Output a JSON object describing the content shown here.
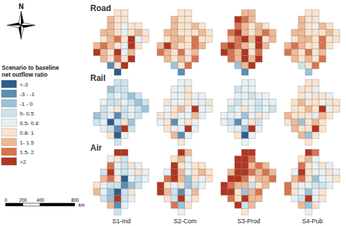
{
  "chart_data": {
    "type": "choropleth",
    "rows": [
      "Road",
      "Rail",
      "Air"
    ],
    "columns": [
      "S1-Ind",
      "S2-Com",
      "S3-Prod",
      "S4-Pub"
    ],
    "legend": {
      "title": [
        "Scenario to baseline",
        "net outflow ratio"
      ],
      "classes": [
        "<-3",
        "-3 - -1",
        "-1 - 0",
        "0- 0.5",
        "0.5- 0.8",
        "0.8- 1",
        "1- 1.5",
        "1.5- 2",
        ">2"
      ],
      "colors": [
        "#2b5f8e",
        "#5b8db5",
        "#9cc3d9",
        "#cde3ee",
        "#e8f0f3",
        "#fbe3cd",
        "#f0b894",
        "#d9734f",
        "#b2351f"
      ]
    },
    "panels": [
      {
        "row": "Road",
        "column": "S1-Ind",
        "classes": [
          5,
          5,
          6,
          5,
          5,
          6,
          5,
          4,
          5,
          5,
          6,
          6,
          5,
          4,
          5,
          6,
          5,
          5,
          6,
          7,
          5,
          8,
          4,
          5,
          6,
          7,
          6,
          5,
          4,
          8,
          5,
          8,
          6,
          5,
          8,
          4,
          6,
          6,
          5,
          7,
          5,
          8,
          1,
          5,
          8,
          0
        ]
      },
      {
        "row": "Road",
        "column": "S2-Com",
        "classes": [
          5,
          5,
          6,
          5,
          5,
          6,
          5,
          5,
          6,
          5,
          6,
          6,
          5,
          5,
          5,
          6,
          5,
          5,
          6,
          6,
          5,
          7,
          5,
          5,
          6,
          8,
          6,
          5,
          5,
          7,
          6,
          7,
          6,
          5,
          7,
          5,
          6,
          6,
          5,
          6,
          5,
          7,
          2,
          5,
          7,
          1
        ]
      },
      {
        "row": "Road",
        "column": "S3-Prod",
        "classes": [
          6,
          6,
          8,
          7,
          6,
          7,
          6,
          5,
          6,
          5,
          7,
          8,
          6,
          5,
          6,
          7,
          6,
          6,
          7,
          8,
          6,
          8,
          5,
          6,
          7,
          8,
          7,
          6,
          5,
          8,
          6,
          8,
          7,
          6,
          8,
          5,
          7,
          7,
          6,
          8,
          6,
          8,
          2,
          6,
          8,
          1
        ]
      },
      {
        "row": "Road",
        "column": "S4-Pub",
        "classes": [
          5,
          5,
          6,
          5,
          5,
          6,
          5,
          4,
          6,
          5,
          6,
          6,
          5,
          5,
          5,
          6,
          5,
          5,
          6,
          6,
          5,
          7,
          5,
          5,
          6,
          7,
          6,
          5,
          5,
          7,
          5,
          7,
          6,
          5,
          7,
          5,
          6,
          6,
          5,
          6,
          5,
          7,
          3,
          5,
          7,
          2
        ]
      },
      {
        "row": "Rail",
        "column": "S1-Ind",
        "classes": [
          3,
          3,
          2,
          3,
          3,
          3,
          4,
          3,
          2,
          3,
          4,
          3,
          3,
          4,
          3,
          2,
          3,
          3,
          4,
          5,
          3,
          4,
          3,
          2,
          2,
          3,
          4,
          1,
          3,
          4,
          3,
          3,
          4,
          0,
          3,
          5,
          2,
          4,
          3,
          1,
          8,
          3,
          5,
          0,
          4,
          3
        ]
      },
      {
        "row": "Rail",
        "column": "S2-Com",
        "classes": [
          4,
          4,
          4,
          4,
          5,
          4,
          4,
          5,
          4,
          4,
          5,
          4,
          4,
          5,
          4,
          4,
          5,
          4,
          5,
          6,
          4,
          8,
          4,
          4,
          5,
          4,
          5,
          4,
          4,
          6,
          4,
          4,
          5,
          1,
          4,
          5,
          4,
          5,
          4,
          4,
          8,
          4,
          6,
          1,
          4,
          5
        ]
      },
      {
        "row": "Rail",
        "column": "S3-Prod",
        "classes": [
          4,
          4,
          3,
          4,
          4,
          4,
          4,
          3,
          4,
          4,
          4,
          3,
          4,
          4,
          3,
          4,
          4,
          3,
          4,
          5,
          4,
          3,
          4,
          3,
          4,
          4,
          4,
          2,
          4,
          5,
          4,
          4,
          3,
          1,
          4,
          5,
          3,
          4,
          4,
          2,
          8,
          4,
          5,
          0,
          4,
          4
        ]
      },
      {
        "row": "Rail",
        "column": "S4-Pub",
        "classes": [
          5,
          5,
          5,
          5,
          4,
          5,
          4,
          5,
          5,
          4,
          5,
          6,
          5,
          5,
          4,
          5,
          5,
          5,
          5,
          6,
          5,
          8,
          4,
          5,
          6,
          5,
          5,
          5,
          4,
          6,
          5,
          5,
          6,
          2,
          5,
          6,
          5,
          6,
          5,
          5,
          8,
          5,
          6,
          2,
          5,
          5
        ]
      },
      {
        "row": "Air",
        "column": "S1-Ind",
        "classes": [
          8,
          8,
          4,
          5,
          3,
          7,
          4,
          3,
          5,
          4,
          3,
          8,
          4,
          3,
          4,
          5,
          4,
          6,
          7,
          5,
          0,
          4,
          3,
          4,
          5,
          4,
          3,
          3,
          1,
          2,
          3,
          6,
          4,
          2,
          0,
          3,
          5,
          3,
          2,
          8,
          3,
          4,
          6,
          1,
          4,
          3
        ]
      },
      {
        "row": "Air",
        "column": "S2-Com",
        "classes": [
          8,
          6,
          5,
          6,
          4,
          8,
          5,
          4,
          5,
          5,
          4,
          8,
          6,
          4,
          5,
          6,
          5,
          7,
          8,
          6,
          2,
          5,
          4,
          5,
          8,
          5,
          4,
          5,
          2,
          3,
          4,
          8,
          6,
          3,
          1,
          4,
          6,
          5,
          3,
          8,
          4,
          5,
          7,
          2,
          5,
          4
        ]
      },
      {
        "row": "Air",
        "column": "S3-Prod",
        "classes": [
          8,
          8,
          8,
          8,
          7,
          8,
          8,
          6,
          7,
          6,
          6,
          8,
          8,
          7,
          6,
          7,
          6,
          8,
          8,
          7,
          5,
          6,
          6,
          7,
          8,
          7,
          6,
          6,
          3,
          5,
          6,
          8,
          8,
          5,
          2,
          6,
          7,
          7,
          5,
          8,
          6,
          6,
          8,
          3,
          6,
          5
        ]
      },
      {
        "row": "Air",
        "column": "S4-Pub",
        "classes": [
          8,
          7,
          5,
          6,
          4,
          7,
          5,
          4,
          5,
          4,
          4,
          8,
          5,
          4,
          4,
          5,
          4,
          6,
          7,
          5,
          2,
          4,
          4,
          5,
          7,
          5,
          4,
          4,
          3,
          3,
          4,
          7,
          5,
          4,
          2,
          4,
          5,
          4,
          3,
          8,
          4,
          5,
          6,
          2,
          5,
          4
        ]
      }
    ],
    "scale_bar": {
      "ticks": [
        0,
        200,
        400,
        800
      ],
      "unit": "km"
    },
    "north_arrow": "N"
  }
}
